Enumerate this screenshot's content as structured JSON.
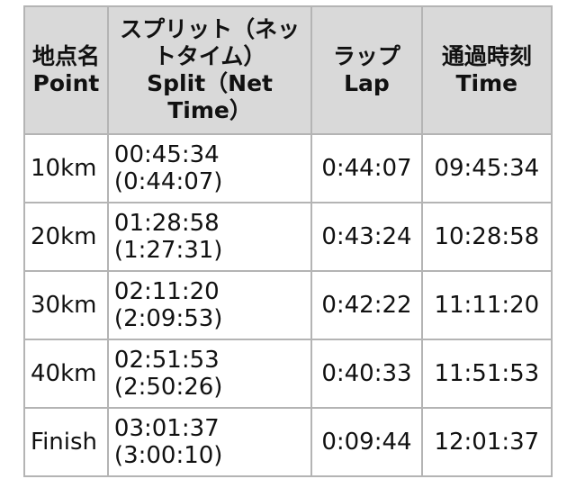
{
  "headers": {
    "point": [
      "地点名",
      "Point"
    ],
    "split": [
      "スプリット（ネットタイム）",
      "Split（Net Time）"
    ],
    "lap": [
      "ラップ",
      "Lap"
    ],
    "time": [
      "通過時刻",
      "Time"
    ]
  },
  "rows": [
    {
      "point": "10km",
      "split": "00:45:34",
      "net": "(0:44:07)",
      "lap": "0:44:07",
      "time": "09:45:34"
    },
    {
      "point": "20km",
      "split": "01:28:58",
      "net": "(1:27:31)",
      "lap": "0:43:24",
      "time": "10:28:58"
    },
    {
      "point": "30km",
      "split": "02:11:20",
      "net": "(2:09:53)",
      "lap": "0:42:22",
      "time": "11:11:20"
    },
    {
      "point": "40km",
      "split": "02:51:53",
      "net": "(2:50:26)",
      "lap": "0:40:33",
      "time": "11:51:53"
    },
    {
      "point": "Finish",
      "split": "03:01:37",
      "net": "(3:00:10)",
      "lap": "0:09:44",
      "time": "12:01:37"
    }
  ]
}
